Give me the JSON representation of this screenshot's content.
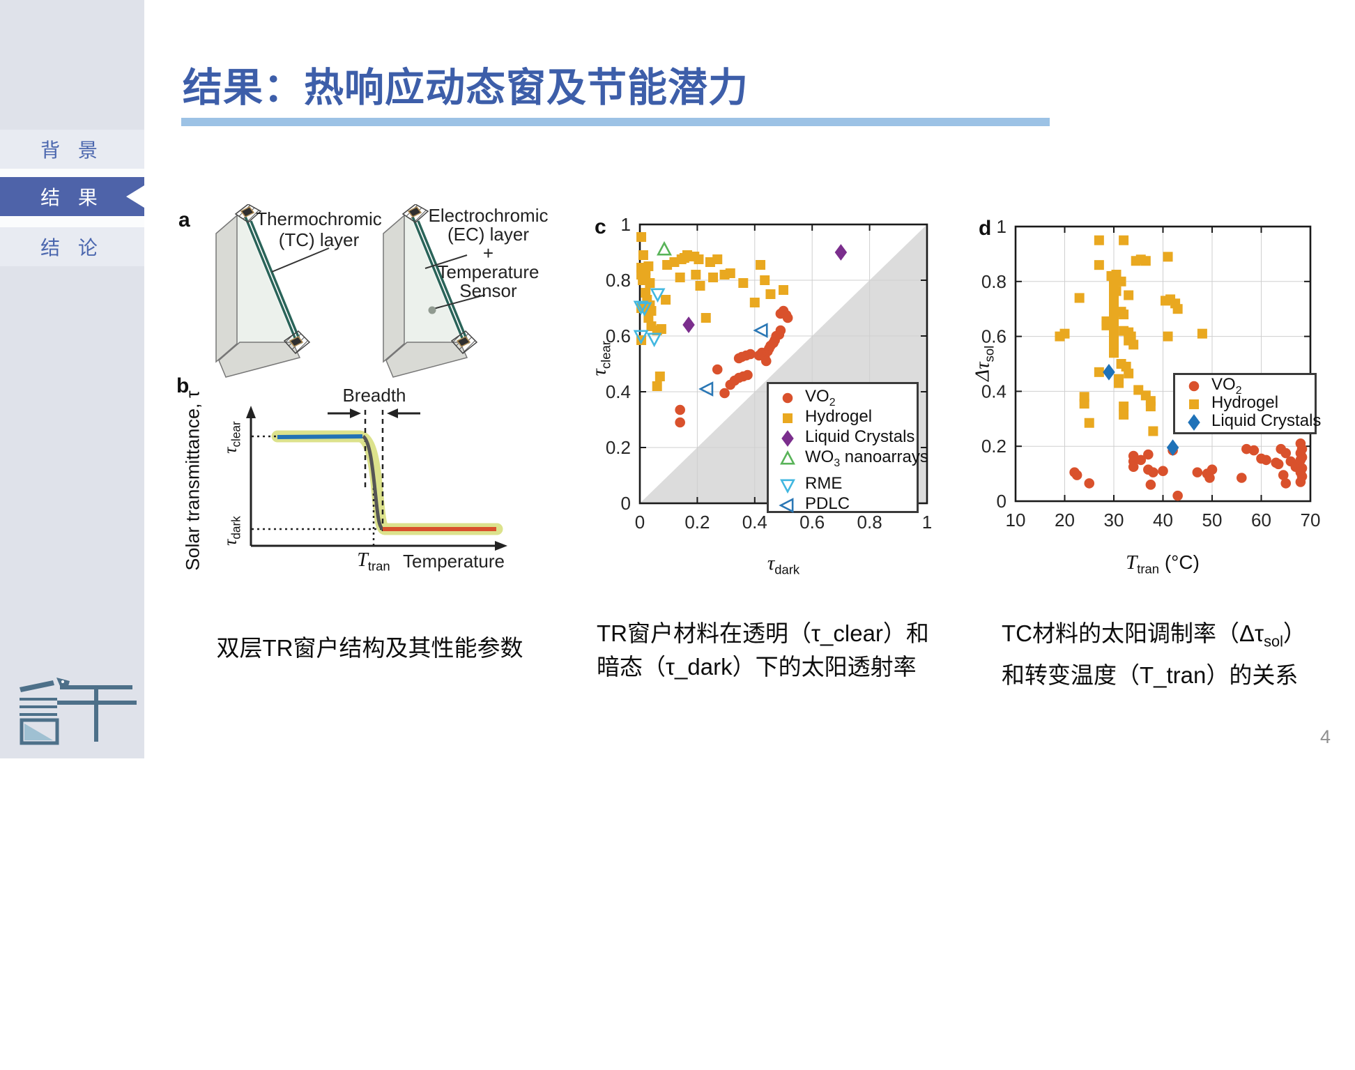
{
  "page": {
    "number": "4"
  },
  "colors": {
    "accent_red_bar": "#e8202c",
    "title_blue": "#3d5ea9",
    "underline_blue": "#9cc2e5",
    "sidebar_bg": "#dfe2ea",
    "nav_item_bg": "#e8ebf2",
    "nav_text": "#4a66ae",
    "nav_active_bg": "#4e63a9",
    "nav_active_text": "#ffffff",
    "vo2": "#d9512c",
    "hydrogel": "#e9a820",
    "liquid_crystals_c": "#7b2e8d",
    "liquid_crystals_d": "#1f72b8",
    "wo3": "#58b358",
    "rme": "#41b7e0",
    "pdlc": "#2a77b5",
    "shade_gray": "#dcdcdc",
    "logo_slate": "#4d7089"
  },
  "sidebar": {
    "items": [
      {
        "label": "背 景",
        "active": false
      },
      {
        "label": "结 果",
        "active": true
      },
      {
        "label": "结 论",
        "active": false
      }
    ]
  },
  "title": {
    "text": "结果：热响应动态窗及节能潜力"
  },
  "panel_a": {
    "letter": "a",
    "tc_label_line1": "Thermochromic",
    "tc_label_line2": "(TC) layer",
    "ec_label_line1": "Electrochromic",
    "ec_label_line2": "(EC) layer",
    "ec_label_line3": "+",
    "ec_label_line4": "Temperature",
    "ec_label_line5": "Sensor"
  },
  "panel_b": {
    "letter": "b",
    "breadth": "Breadth",
    "ylabel": "Solar transmittance, τ",
    "tau_clear_main": "τ",
    "tau_clear_sub": "clear",
    "tau_dark_main": "τ",
    "tau_dark_sub": "dark",
    "ttran_main": "T",
    "ttran_sub": "tran",
    "xlabel": "Temperature"
  },
  "panel_c": {
    "letter": "c",
    "xlabel_main": "τ",
    "xlabel_sub": "dark",
    "ylabel_main": "τ",
    "ylabel_sub": "clear",
    "legend": [
      {
        "pre": "VO",
        "sub": "2",
        "post": ""
      },
      {
        "pre": "Hydrogel",
        "sub": "",
        "post": ""
      },
      {
        "pre": "Liquid Crystals",
        "sub": "",
        "post": ""
      },
      {
        "pre": "WO",
        "sub": "3",
        "post": " nanoarrays"
      },
      {
        "pre": "RME",
        "sub": "",
        "post": "",
        "gap_before": true
      },
      {
        "pre": "PDLC",
        "sub": "",
        "post": ""
      }
    ]
  },
  "panel_d": {
    "letter": "d",
    "xlabel_main": "T",
    "xlabel_sub": "tran",
    "xlabel_post": " (°C)",
    "ylabel_main": "Δτ",
    "ylabel_sub": "sol",
    "legend": [
      {
        "pre": "VO",
        "sub": "2",
        "post": ""
      },
      {
        "pre": "Hydrogel",
        "sub": "",
        "post": ""
      },
      {
        "pre": "Liquid Crystals",
        "sub": "",
        "post": ""
      }
    ]
  },
  "captions": {
    "a": "双层TR窗户结构及其性能参数",
    "c_line1": "TR窗户材料在透明（τ_clear）和",
    "c_line2": "暗态（τ_dark）下的太阳透射率",
    "d_line1_pre": "TC材料的太阳调制率（Δτ",
    "d_line1_sub": "sol",
    "d_line1_post": "）",
    "d_line2": "和转变温度（T_tran）的关系"
  },
  "chart_data": [
    {
      "id": "c",
      "type": "scatter",
      "xlabel": "τ_dark",
      "ylabel": "τ_clear",
      "xlim": [
        0,
        1
      ],
      "ylim": [
        0,
        1
      ],
      "xticks": [
        0,
        0.2,
        0.4,
        0.6,
        0.8,
        1
      ],
      "yticks": [
        0,
        0.2,
        0.4,
        0.6,
        0.8,
        1
      ],
      "grid": true,
      "legend_position": "lower right",
      "shade": [
        [
          0,
          0
        ],
        [
          1,
          0
        ],
        [
          1,
          1
        ]
      ],
      "shade_color": "#dcdcdc",
      "series": [
        {
          "name": "VO2",
          "icon": "vo2-marker-icon",
          "marker": "circle",
          "color": "#d9512c",
          "filled": true,
          "points": [
            [
              0.14,
              0.335
            ],
            [
              0.14,
              0.29
            ],
            [
              0.295,
              0.395
            ],
            [
              0.315,
              0.425
            ],
            [
              0.33,
              0.44
            ],
            [
              0.345,
              0.45
            ],
            [
              0.36,
              0.455
            ],
            [
              0.375,
              0.46
            ],
            [
              0.27,
              0.48
            ],
            [
              0.345,
              0.52
            ],
            [
              0.355,
              0.525
            ],
            [
              0.37,
              0.53
            ],
            [
              0.385,
              0.535
            ],
            [
              0.415,
              0.53
            ],
            [
              0.425,
              0.54
            ],
            [
              0.435,
              0.525
            ],
            [
              0.44,
              0.51
            ],
            [
              0.445,
              0.545
            ],
            [
              0.45,
              0.555
            ],
            [
              0.455,
              0.565
            ],
            [
              0.465,
              0.575
            ],
            [
              0.47,
              0.585
            ],
            [
              0.475,
              0.6
            ],
            [
              0.485,
              0.605
            ],
            [
              0.49,
              0.62
            ],
            [
              0.49,
              0.68
            ],
            [
              0.5,
              0.69
            ],
            [
              0.51,
              0.675
            ],
            [
              0.515,
              0.665
            ]
          ]
        },
        {
          "name": "Hydrogel",
          "icon": "hydrogel-marker-icon",
          "marker": "square",
          "color": "#e9a820",
          "filled": true,
          "points": [
            [
              0.005,
              0.955
            ],
            [
              0.012,
              0.89
            ],
            [
              0.005,
              0.845
            ],
            [
              0.01,
              0.83
            ],
            [
              0.005,
              0.82
            ],
            [
              0.015,
              0.815
            ],
            [
              0.02,
              0.81
            ],
            [
              0.01,
              0.8
            ],
            [
              0.02,
              0.835
            ],
            [
              0.03,
              0.85
            ],
            [
              0.035,
              0.79
            ],
            [
              0.02,
              0.755
            ],
            [
              0.025,
              0.73
            ],
            [
              0.005,
              0.7
            ],
            [
              0.015,
              0.705
            ],
            [
              0.025,
              0.705
            ],
            [
              0.035,
              0.71
            ],
            [
              0.04,
              0.69
            ],
            [
              0.03,
              0.665
            ],
            [
              0.04,
              0.635
            ],
            [
              0.06,
              0.62
            ],
            [
              0.075,
              0.625
            ],
            [
              0.005,
              0.585
            ],
            [
              0.09,
              0.73
            ],
            [
              0.095,
              0.855
            ],
            [
              0.12,
              0.865
            ],
            [
              0.145,
              0.875
            ],
            [
              0.155,
              0.88
            ],
            [
              0.165,
              0.89
            ],
            [
              0.175,
              0.885
            ],
            [
              0.19,
              0.885
            ],
            [
              0.205,
              0.875
            ],
            [
              0.14,
              0.81
            ],
            [
              0.195,
              0.82
            ],
            [
              0.21,
              0.78
            ],
            [
              0.245,
              0.865
            ],
            [
              0.27,
              0.875
            ],
            [
              0.255,
              0.81
            ],
            [
              0.295,
              0.82
            ],
            [
              0.315,
              0.825
            ],
            [
              0.36,
              0.79
            ],
            [
              0.42,
              0.855
            ],
            [
              0.435,
              0.8
            ],
            [
              0.455,
              0.75
            ],
            [
              0.5,
              0.765
            ],
            [
              0.4,
              0.72
            ],
            [
              0.23,
              0.665
            ],
            [
              0.07,
              0.455
            ],
            [
              0.06,
              0.42
            ]
          ]
        },
        {
          "name": "Liquid Crystals",
          "icon": "liquid-crystals-marker-icon",
          "marker": "diamond",
          "color": "#7b2e8d",
          "filled": true,
          "msize": 1.25,
          "points": [
            [
              0.17,
              0.64
            ],
            [
              0.7,
              0.9
            ]
          ]
        },
        {
          "name": "WO3 nanoarrays",
          "icon": "wo3-marker-icon",
          "marker": "triangle-up",
          "color": "#58b358",
          "filled": false,
          "msize": 1.1,
          "points": [
            [
              0.085,
              0.91
            ]
          ]
        },
        {
          "name": "RME",
          "icon": "rme-marker-icon",
          "marker": "triangle-down",
          "color": "#41b7e0",
          "filled": false,
          "msize": 1.1,
          "points": [
            [
              0.004,
              0.705
            ],
            [
              0.016,
              0.7
            ],
            [
              0.062,
              0.75
            ],
            [
              0.004,
              0.6
            ],
            [
              0.05,
              0.59
            ]
          ]
        },
        {
          "name": "PDLC",
          "icon": "pdlc-marker-icon",
          "marker": "triangle-left",
          "color": "#2a77b5",
          "filled": false,
          "msize": 1.1,
          "points": [
            [
              0.425,
              0.62
            ],
            [
              0.235,
              0.41
            ]
          ]
        }
      ]
    },
    {
      "id": "d",
      "type": "scatter",
      "xlabel": "T_tran (°C)",
      "ylabel": "Δτ_sol",
      "xlim": [
        10,
        70
      ],
      "ylim": [
        0,
        1
      ],
      "xticks": [
        10,
        20,
        30,
        40,
        50,
        60,
        70
      ],
      "yticks": [
        0,
        0.2,
        0.4,
        0.6,
        0.8,
        1
      ],
      "grid": true,
      "legend_position": "right",
      "series": [
        {
          "name": "VO2",
          "icon": "vo2-marker-icon",
          "marker": "circle",
          "color": "#d9512c",
          "filled": true,
          "points": [
            [
              22,
              0.105
            ],
            [
              22.5,
              0.095
            ],
            [
              25,
              0.065
            ],
            [
              34,
              0.165
            ],
            [
              34,
              0.145
            ],
            [
              34,
              0.125
            ],
            [
              35.5,
              0.15
            ],
            [
              37,
              0.17
            ],
            [
              37,
              0.115
            ],
            [
              38,
              0.105
            ],
            [
              37.5,
              0.06
            ],
            [
              40,
              0.11
            ],
            [
              42,
              0.185
            ],
            [
              43,
              0.02
            ],
            [
              47,
              0.105
            ],
            [
              49,
              0.1
            ],
            [
              49.5,
              0.085
            ],
            [
              50,
              0.115
            ],
            [
              56,
              0.085
            ],
            [
              57,
              0.19
            ],
            [
              58.5,
              0.185
            ],
            [
              60,
              0.155
            ],
            [
              61,
              0.15
            ],
            [
              63,
              0.14
            ],
            [
              63.5,
              0.135
            ],
            [
              64,
              0.19
            ],
            [
              65,
              0.175
            ],
            [
              64.5,
              0.095
            ],
            [
              65,
              0.065
            ],
            [
              66,
              0.145
            ],
            [
              67,
              0.125
            ],
            [
              68,
              0.21
            ],
            [
              68.3,
              0.19
            ],
            [
              68,
              0.175
            ],
            [
              68.3,
              0.16
            ],
            [
              68,
              0.15
            ],
            [
              68.3,
              0.12
            ],
            [
              68,
              0.105
            ],
            [
              68.3,
              0.09
            ],
            [
              68,
              0.07
            ]
          ]
        },
        {
          "name": "Hydrogel",
          "icon": "hydrogel-marker-icon",
          "marker": "square",
          "color": "#e9a820",
          "filled": true,
          "points": [
            [
              27,
              0.95
            ],
            [
              32,
              0.95
            ],
            [
              27,
              0.86
            ],
            [
              34.5,
              0.875
            ],
            [
              35.5,
              0.88
            ],
            [
              36.5,
              0.875
            ],
            [
              41,
              0.89
            ],
            [
              23,
              0.74
            ],
            [
              29.5,
              0.82
            ],
            [
              30.5,
              0.825
            ],
            [
              30,
              0.8
            ],
            [
              31.5,
              0.8
            ],
            [
              30,
              0.78
            ],
            [
              30.5,
              0.765
            ],
            [
              30,
              0.75
            ],
            [
              33,
              0.75
            ],
            [
              30,
              0.73
            ],
            [
              30,
              0.71
            ],
            [
              30,
              0.695
            ],
            [
              31.5,
              0.69
            ],
            [
              32,
              0.68
            ],
            [
              30,
              0.675
            ],
            [
              30,
              0.66
            ],
            [
              28.5,
              0.655
            ],
            [
              28.5,
              0.64
            ],
            [
              30,
              0.645
            ],
            [
              30,
              0.63
            ],
            [
              30,
              0.615
            ],
            [
              30,
              0.6
            ],
            [
              30,
              0.585
            ],
            [
              30,
              0.57
            ],
            [
              30,
              0.555
            ],
            [
              30,
              0.54
            ],
            [
              19,
              0.6
            ],
            [
              20,
              0.61
            ],
            [
              32,
              0.62
            ],
            [
              33,
              0.615
            ],
            [
              33.5,
              0.6
            ],
            [
              33,
              0.585
            ],
            [
              34,
              0.57
            ],
            [
              41,
              0.6
            ],
            [
              48,
              0.61
            ],
            [
              40.5,
              0.73
            ],
            [
              41.5,
              0.735
            ],
            [
              42.5,
              0.72
            ],
            [
              43,
              0.7
            ],
            [
              31.5,
              0.5
            ],
            [
              32.5,
              0.49
            ],
            [
              33,
              0.465
            ],
            [
              27,
              0.47
            ],
            [
              31,
              0.445
            ],
            [
              31,
              0.43
            ],
            [
              35,
              0.405
            ],
            [
              36.5,
              0.385
            ],
            [
              37.5,
              0.365
            ],
            [
              37.5,
              0.345
            ],
            [
              24,
              0.38
            ],
            [
              24,
              0.355
            ],
            [
              32,
              0.345
            ],
            [
              32,
              0.315
            ],
            [
              25,
              0.285
            ],
            [
              38,
              0.255
            ]
          ]
        },
        {
          "name": "Liquid Crystals",
          "icon": "liquid-crystals-marker-icon",
          "marker": "diamond",
          "color": "#1f72b8",
          "filled": true,
          "msize": 1.25,
          "points": [
            [
              29,
              0.47
            ],
            [
              42,
              0.195
            ]
          ]
        }
      ]
    },
    {
      "id": "b",
      "type": "line",
      "title": "Thermochromic transition schematic",
      "xlabel": "Temperature",
      "ylabel": "Solar transmittance, τ",
      "annotations": [
        "Breadth",
        "τ_clear",
        "τ_dark",
        "T_tran"
      ],
      "description": "Transmittance stays at τ_clear (blue line) below T_tran, drops steeply across the transition breadth (dark sigmoid with olive band) to τ_dark (red line) above T_tran."
    }
  ]
}
